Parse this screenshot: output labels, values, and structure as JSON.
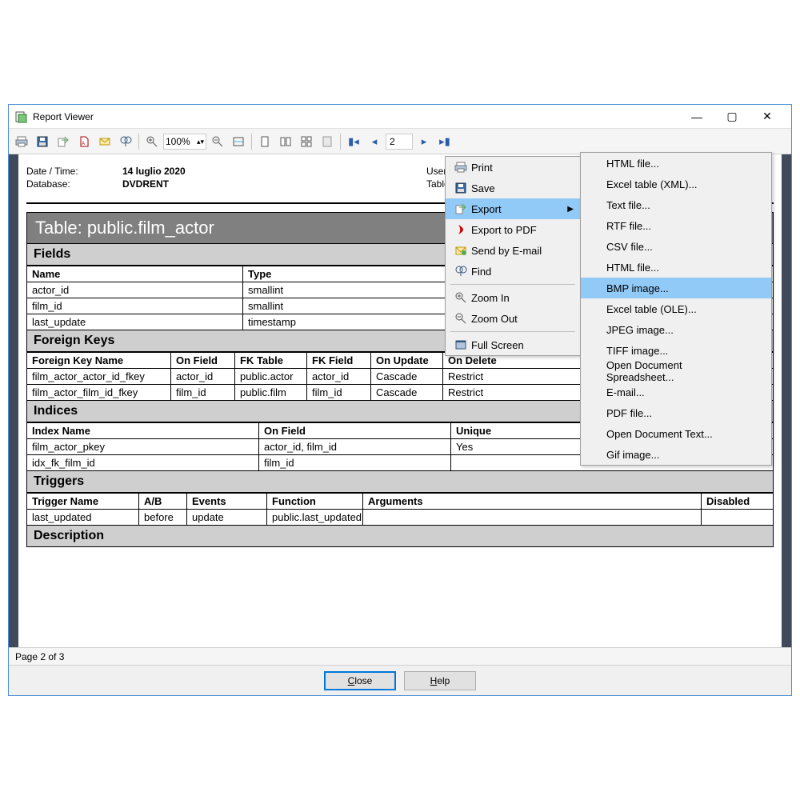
{
  "window": {
    "title": "Report Viewer"
  },
  "toolbar": {
    "zoom_value": "100%",
    "page_value": "2"
  },
  "meta": {
    "date_label": "Date / Time:",
    "date_value": "14 luglio 2020",
    "db_label": "Database:",
    "db_value": "DVDRENT",
    "user_label": "User:",
    "table_label": "Table:"
  },
  "title_banner": "Table: public.film_actor",
  "sections": {
    "fields": {
      "header": "Fields",
      "cols": [
        "Name",
        "Type"
      ],
      "col_widths": [
        "270px",
        "auto"
      ],
      "rows": [
        [
          "actor_id",
          "smallint"
        ],
        [
          "film_id",
          "smallint"
        ],
        [
          "last_update",
          "timestamp"
        ]
      ]
    },
    "fkeys": {
      "header": "Foreign Keys",
      "cols": [
        "Foreign Key Name",
        "On Field",
        "FK Table",
        "FK Field",
        "On Update",
        "On Delete"
      ],
      "col_widths": [
        "180px",
        "80px",
        "90px",
        "80px",
        "90px",
        "auto"
      ],
      "rows": [
        [
          "film_actor_actor_id_fkey",
          "actor_id",
          "public.actor",
          "actor_id",
          "Cascade",
          "Restrict"
        ],
        [
          "film_actor_film_id_fkey",
          "film_id",
          "public.film",
          "film_id",
          "Cascade",
          "Restrict"
        ]
      ]
    },
    "indices": {
      "header": "Indices",
      "cols": [
        "Index Name",
        "On Field",
        "Unique"
      ],
      "col_widths": [
        "290px",
        "240px",
        "auto"
      ],
      "rows": [
        [
          "film_actor_pkey",
          "actor_id, film_id",
          "Yes"
        ],
        [
          "idx_fk_film_id",
          "film_id",
          ""
        ]
      ]
    },
    "triggers": {
      "header": "Triggers",
      "cols": [
        "Trigger Name",
        "A/B",
        "Events",
        "Function",
        "Arguments",
        "Disabled"
      ],
      "col_widths": [
        "140px",
        "60px",
        "100px",
        "120px",
        "auto",
        "90px"
      ],
      "rows": [
        [
          "last_updated",
          "before",
          "update",
          "public.last_updated",
          "",
          ""
        ]
      ]
    },
    "description": {
      "header": "Description"
    }
  },
  "status": {
    "page_text": "Page 2 of 3"
  },
  "buttons": {
    "close": "Close",
    "help": "Help"
  },
  "context_menu": {
    "items": [
      {
        "label": "Print",
        "icon": "print"
      },
      {
        "label": "Save",
        "icon": "save"
      },
      {
        "label": "Export",
        "icon": "export",
        "submenu": true,
        "highlighted": true
      },
      {
        "label": "Export to PDF",
        "icon": "pdf"
      },
      {
        "label": "Send by E-mail",
        "icon": "mail"
      },
      {
        "label": "Find",
        "icon": "find"
      },
      {
        "divider": true
      },
      {
        "label": "Zoom In",
        "icon": "zoom-in"
      },
      {
        "label": "Zoom Out",
        "icon": "zoom-out"
      },
      {
        "divider": true
      },
      {
        "label": "Full Screen",
        "icon": "fullscreen"
      }
    ]
  },
  "export_submenu": {
    "items": [
      "HTML file...",
      "Excel table (XML)...",
      "Text file...",
      "RTF file...",
      "CSV file...",
      "HTML file...",
      "BMP image...",
      "Excel table (OLE)...",
      "JPEG image...",
      "TIFF image...",
      "Open Document Spreadsheet...",
      "E-mail...",
      "PDF file...",
      "Open Document Text...",
      "Gif image..."
    ],
    "highlighted_index": 6
  },
  "colors": {
    "highlight": "#91c9f7",
    "banner_bg": "#808080",
    "section_bg": "#cfcfcf",
    "window_border": "#4a90d9"
  }
}
